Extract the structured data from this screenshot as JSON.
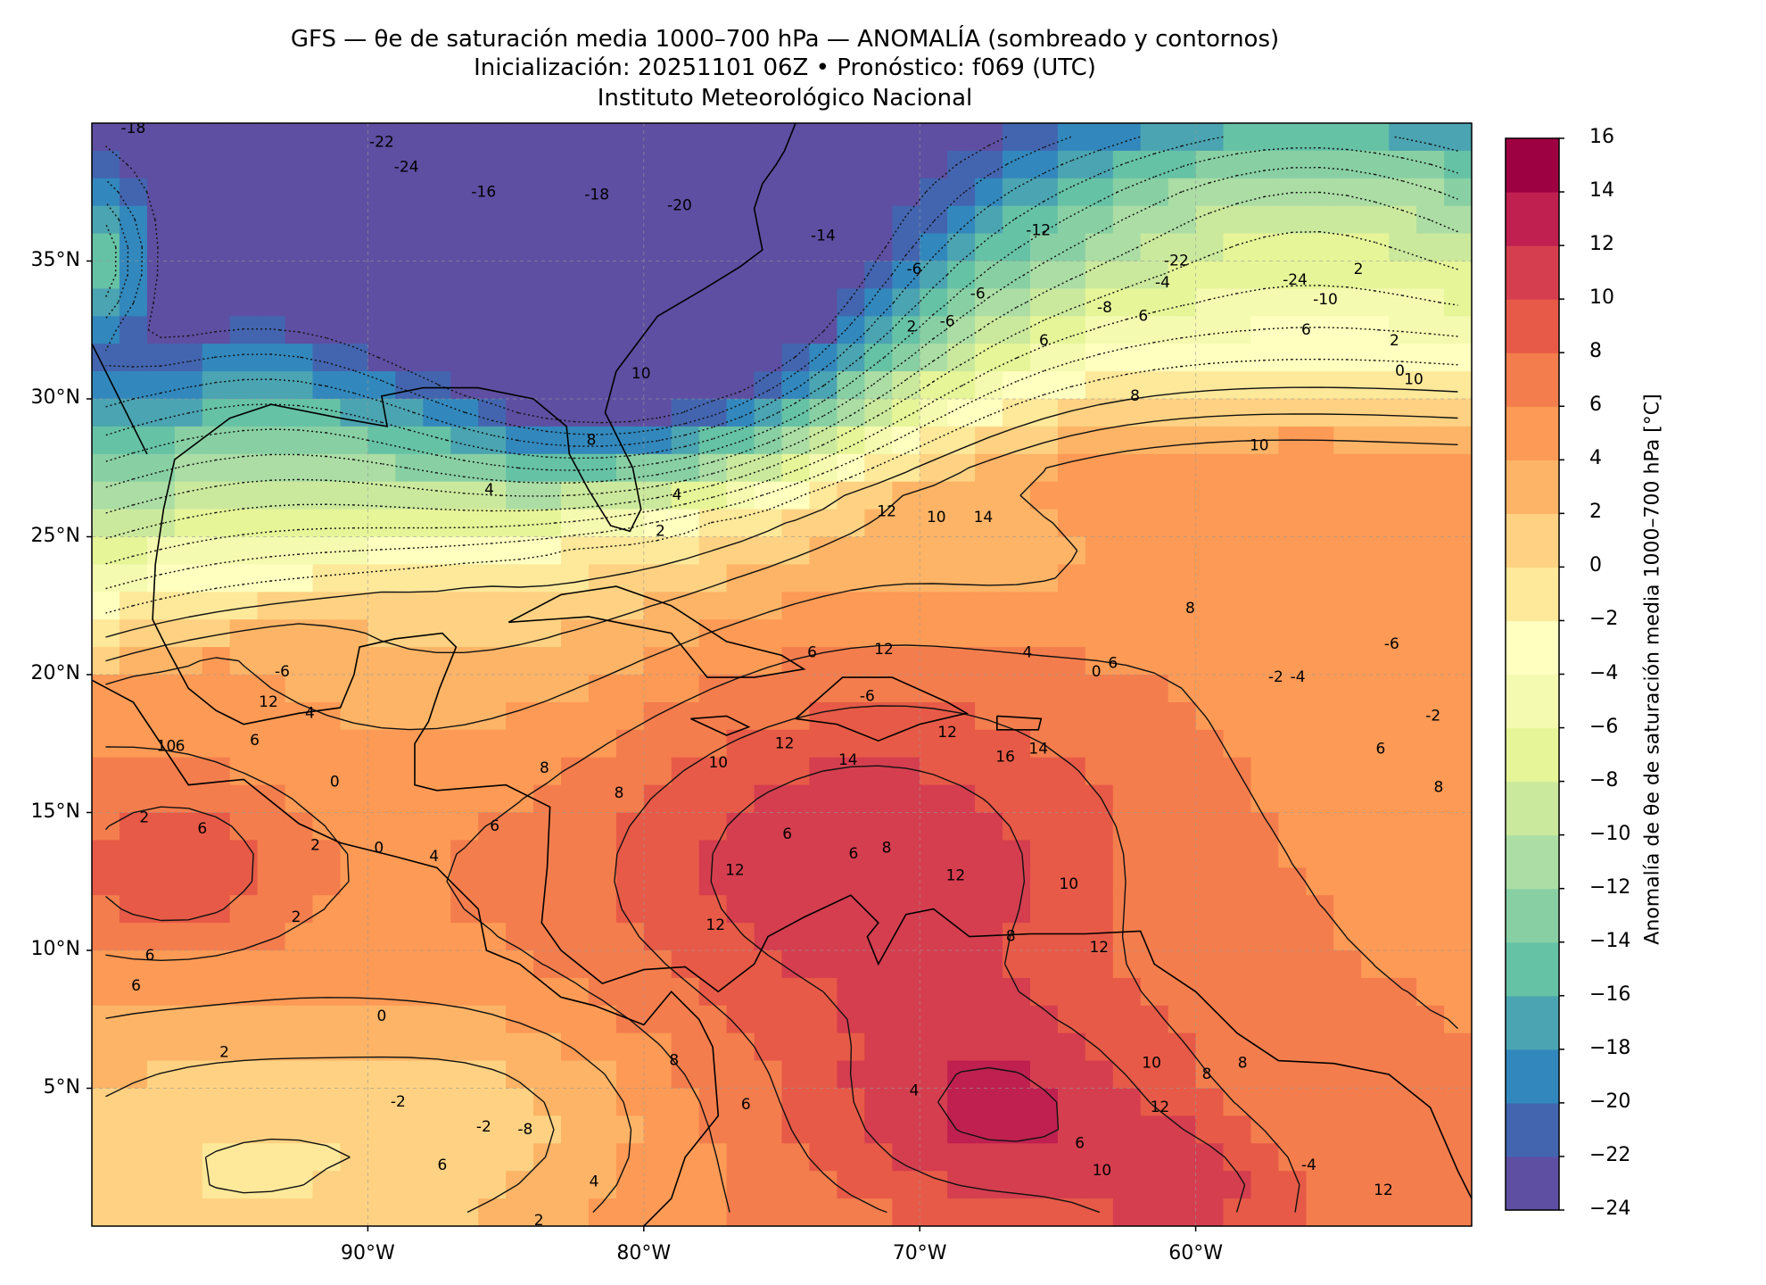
{
  "title": {
    "line1": "GFS — θe de saturación media 1000–700 hPa — ANOMALÍA (sombreado y contornos)",
    "line2": "Inicialización: 20251101 06Z   •   Pronóstico: f069 (UTC)",
    "line3": "Instituto Meteorológico Nacional"
  },
  "axes": {
    "lat_ticks": [
      "35°N",
      "30°N",
      "25°N",
      "20°N",
      "15°N",
      "10°N",
      "5°N"
    ],
    "lon_ticks": [
      "90°W",
      "80°W",
      "70°W",
      "60°W"
    ],
    "lat_range": [
      0,
      40
    ],
    "lon_range": [
      -100,
      -50
    ]
  },
  "colorbar": {
    "label": "Anomalía de θe de saturación media 1000–700 hPa [°C]",
    "ticks": [
      "16",
      "14",
      "12",
      "10",
      "8",
      "6",
      "4",
      "2",
      "0",
      "−2",
      "−4",
      "−6",
      "−8",
      "−10",
      "−12",
      "−14",
      "−16",
      "−18",
      "−20",
      "−22",
      "−24"
    ],
    "range": [
      -24,
      16
    ],
    "colors": [
      "#5e4fa2",
      "#4365b0",
      "#3288bd",
      "#4ba4b1",
      "#66c2a5",
      "#88d0a4",
      "#abdda4",
      "#cbe99d",
      "#e6f598",
      "#f4fab0",
      "#ffffbf",
      "#fee89a",
      "#fed282",
      "#fdb466",
      "#fd9a55",
      "#f47d4d",
      "#e75a47",
      "#d53e4f",
      "#bf2050",
      "#9e0142"
    ]
  },
  "contour_labels": [
    "-18",
    "-22",
    "-24",
    "-16",
    "-18",
    "-20",
    "-14",
    "-12",
    "-6",
    "-6",
    "-6",
    "-8",
    "-4",
    "-22",
    "-24",
    "-10",
    "2",
    "2",
    "0",
    "2",
    "6",
    "6",
    "6",
    "10",
    "10",
    "8",
    "4",
    "4",
    "2",
    "8",
    "10",
    "12",
    "10",
    "14",
    "8",
    "12",
    "6",
    "4",
    "0",
    "-2",
    "-4",
    "-6",
    "-2",
    "6",
    "8",
    "-6",
    "6",
    "-6",
    "2",
    "12",
    "10",
    "6",
    "6",
    "4",
    "0",
    "0",
    "2",
    "6",
    "8",
    "8",
    "10",
    "12",
    "14",
    "12",
    "16",
    "14",
    "8",
    "6",
    "12",
    "10",
    "12",
    "8",
    "6",
    "6",
    "4",
    "2",
    "0",
    "-2",
    "2",
    "6",
    "6",
    "8",
    "12",
    "12",
    "4",
    "6",
    "4",
    "2",
    "-2",
    "6",
    "-8",
    "6",
    "10",
    "12",
    "8",
    "8",
    "10",
    "12",
    "-4"
  ]
}
